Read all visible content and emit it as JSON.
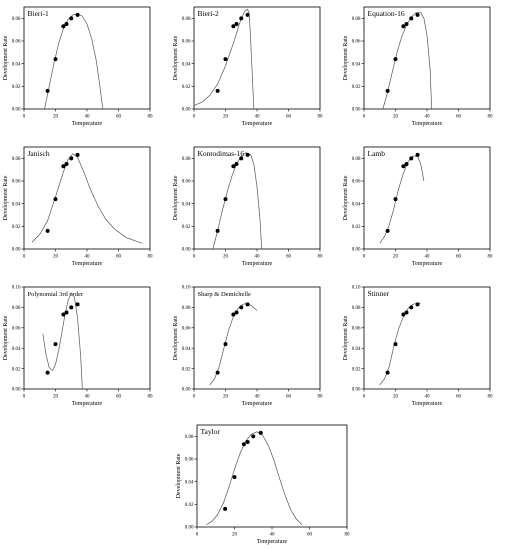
{
  "figure": {
    "x_axis_label": "Temperature",
    "y_axis_label": "Development Rate",
    "x_ticks": [
      0,
      20,
      40,
      60,
      80
    ],
    "y_ticks": [
      "0.00",
      "0.02",
      "0.04",
      "0.06",
      "0.08"
    ],
    "y_ticks_alt": [
      "0.00",
      "0.02",
      "0.04",
      "0.06",
      "0.08",
      "0.10"
    ]
  },
  "chart_data": [
    {
      "type": "scatter",
      "title": "Bieri-1",
      "xlabel": "Temperature",
      "ylabel": "Development Rate",
      "xlim": [
        0,
        80
      ],
      "ylim": [
        0,
        0.09
      ],
      "y_tick_set": "standard",
      "points": [
        [
          15,
          0.016
        ],
        [
          20,
          0.044
        ],
        [
          25,
          0.073
        ],
        [
          27,
          0.075
        ],
        [
          30,
          0.08
        ],
        [
          34,
          0.083
        ]
      ],
      "curve": [
        [
          13,
          0.0
        ],
        [
          16,
          0.02
        ],
        [
          19,
          0.04
        ],
        [
          22,
          0.058
        ],
        [
          25,
          0.071
        ],
        [
          28,
          0.079
        ],
        [
          31,
          0.083
        ],
        [
          34,
          0.084
        ],
        [
          37,
          0.082
        ],
        [
          40,
          0.075
        ],
        [
          43,
          0.062
        ],
        [
          46,
          0.042
        ],
        [
          48,
          0.022
        ],
        [
          50,
          0.0
        ]
      ]
    },
    {
      "type": "scatter",
      "title": "Bieri-2",
      "xlabel": "Temperature",
      "ylabel": "Development Rate",
      "xlim": [
        0,
        80
      ],
      "ylim": [
        0,
        0.09
      ],
      "y_tick_set": "standard",
      "points": [
        [
          15,
          0.016
        ],
        [
          20,
          0.044
        ],
        [
          25,
          0.073
        ],
        [
          27,
          0.075
        ],
        [
          30,
          0.08
        ],
        [
          34,
          0.083
        ]
      ],
      "curve": [
        [
          0,
          0.003
        ],
        [
          5,
          0.006
        ],
        [
          10,
          0.012
        ],
        [
          15,
          0.022
        ],
        [
          20,
          0.038
        ],
        [
          25,
          0.058
        ],
        [
          29,
          0.076
        ],
        [
          32,
          0.086
        ],
        [
          34,
          0.088
        ],
        [
          35,
          0.085
        ],
        [
          36,
          0.06
        ],
        [
          37,
          0.03
        ],
        [
          38,
          0.0
        ]
      ]
    },
    {
      "type": "scatter",
      "title": "Equation-16",
      "xlabel": "Temperature",
      "ylabel": "Development Rate",
      "xlim": [
        0,
        80
      ],
      "ylim": [
        0,
        0.09
      ],
      "y_tick_set": "standard",
      "points": [
        [
          15,
          0.016
        ],
        [
          20,
          0.044
        ],
        [
          25,
          0.073
        ],
        [
          27,
          0.075
        ],
        [
          30,
          0.08
        ],
        [
          34,
          0.083
        ]
      ],
      "curve": [
        [
          12,
          0.0
        ],
        [
          15,
          0.015
        ],
        [
          18,
          0.033
        ],
        [
          21,
          0.05
        ],
        [
          24,
          0.064
        ],
        [
          27,
          0.074
        ],
        [
          30,
          0.081
        ],
        [
          33,
          0.085
        ],
        [
          36,
          0.085
        ],
        [
          38,
          0.08
        ],
        [
          40,
          0.065
        ],
        [
          42,
          0.035
        ],
        [
          43,
          0.0
        ]
      ]
    },
    {
      "type": "scatter",
      "title": "Janisch",
      "xlabel": "Temperature",
      "ylabel": "Development Rate",
      "xlim": [
        0,
        80
      ],
      "ylim": [
        0,
        0.09
      ],
      "y_tick_set": "standard",
      "points": [
        [
          15,
          0.016
        ],
        [
          20,
          0.044
        ],
        [
          25,
          0.073
        ],
        [
          27,
          0.075
        ],
        [
          30,
          0.08
        ],
        [
          34,
          0.083
        ]
      ],
      "curve": [
        [
          5,
          0.006
        ],
        [
          10,
          0.013
        ],
        [
          15,
          0.025
        ],
        [
          20,
          0.046
        ],
        [
          25,
          0.068
        ],
        [
          28,
          0.079
        ],
        [
          31,
          0.084
        ],
        [
          34,
          0.081
        ],
        [
          38,
          0.068
        ],
        [
          42,
          0.053
        ],
        [
          47,
          0.038
        ],
        [
          52,
          0.026
        ],
        [
          58,
          0.017
        ],
        [
          65,
          0.01
        ],
        [
          75,
          0.005
        ]
      ]
    },
    {
      "type": "scatter",
      "title": "Kontodimas-16",
      "xlabel": "Temperature",
      "ylabel": "Development Rate",
      "xlim": [
        0,
        80
      ],
      "ylim": [
        0,
        0.09
      ],
      "y_tick_set": "standard",
      "points": [
        [
          15,
          0.016
        ],
        [
          20,
          0.044
        ],
        [
          25,
          0.073
        ],
        [
          27,
          0.075
        ],
        [
          30,
          0.08
        ],
        [
          34,
          0.083
        ]
      ],
      "curve": [
        [
          12,
          0.0
        ],
        [
          15,
          0.016
        ],
        [
          18,
          0.034
        ],
        [
          21,
          0.05
        ],
        [
          24,
          0.064
        ],
        [
          27,
          0.075
        ],
        [
          30,
          0.082
        ],
        [
          33,
          0.085
        ],
        [
          36,
          0.083
        ],
        [
          38,
          0.075
        ],
        [
          40,
          0.055
        ],
        [
          42,
          0.025
        ],
        [
          43,
          0.0
        ]
      ]
    },
    {
      "type": "scatter",
      "title": "Lamb",
      "xlabel": "Temperature",
      "ylabel": "Development Rate",
      "xlim": [
        0,
        80
      ],
      "ylim": [
        0,
        0.09
      ],
      "y_tick_set": "standard",
      "points": [
        [
          15,
          0.016
        ],
        [
          20,
          0.044
        ],
        [
          25,
          0.073
        ],
        [
          27,
          0.075
        ],
        [
          30,
          0.08
        ],
        [
          34,
          0.083
        ]
      ],
      "curve": [
        [
          10,
          0.005
        ],
        [
          13,
          0.011
        ],
        [
          16,
          0.021
        ],
        [
          19,
          0.036
        ],
        [
          22,
          0.053
        ],
        [
          25,
          0.067
        ],
        [
          28,
          0.077
        ],
        [
          31,
          0.082
        ],
        [
          34,
          0.082
        ],
        [
          36,
          0.075
        ],
        [
          38,
          0.06
        ]
      ]
    },
    {
      "type": "scatter",
      "title": "Polynomial 3rd order",
      "xlabel": "Temperature",
      "ylabel": "Development Rate",
      "xlim": [
        0,
        80
      ],
      "ylim": [
        0,
        0.1
      ],
      "y_tick_set": "alt",
      "points": [
        [
          15,
          0.016
        ],
        [
          20,
          0.044
        ],
        [
          25,
          0.073
        ],
        [
          27,
          0.075
        ],
        [
          30,
          0.08
        ],
        [
          34,
          0.083
        ]
      ],
      "curve": [
        [
          12,
          0.054
        ],
        [
          14,
          0.034
        ],
        [
          16,
          0.021
        ],
        [
          18,
          0.018
        ],
        [
          20,
          0.024
        ],
        [
          22,
          0.038
        ],
        [
          24,
          0.055
        ],
        [
          26,
          0.073
        ],
        [
          28,
          0.087
        ],
        [
          30,
          0.094
        ],
        [
          32,
          0.09
        ],
        [
          34,
          0.07
        ],
        [
          36,
          0.032
        ],
        [
          37,
          0.0
        ]
      ]
    },
    {
      "type": "scatter",
      "title": "Sharp & Demichelle",
      "xlabel": "Temperature",
      "ylabel": "Development Rate",
      "xlim": [
        0,
        80
      ],
      "ylim": [
        0,
        0.1
      ],
      "y_tick_set": "alt",
      "points": [
        [
          15,
          0.016
        ],
        [
          20,
          0.044
        ],
        [
          25,
          0.073
        ],
        [
          27,
          0.075
        ],
        [
          30,
          0.08
        ],
        [
          34,
          0.083
        ]
      ],
      "curve": [
        [
          10,
          0.004
        ],
        [
          13,
          0.01
        ],
        [
          16,
          0.022
        ],
        [
          19,
          0.04
        ],
        [
          22,
          0.058
        ],
        [
          25,
          0.071
        ],
        [
          28,
          0.079
        ],
        [
          31,
          0.083
        ],
        [
          34,
          0.084
        ],
        [
          37,
          0.081
        ],
        [
          40,
          0.077
        ]
      ]
    },
    {
      "type": "scatter",
      "title": "Stinner",
      "xlabel": "Temperature",
      "ylabel": "Development Rate",
      "xlim": [
        0,
        80
      ],
      "ylim": [
        0,
        0.1
      ],
      "y_tick_set": "alt",
      "points": [
        [
          15,
          0.016
        ],
        [
          20,
          0.044
        ],
        [
          25,
          0.073
        ],
        [
          27,
          0.075
        ],
        [
          30,
          0.08
        ],
        [
          34,
          0.083
        ]
      ],
      "curve": [
        [
          10,
          0.004
        ],
        [
          13,
          0.01
        ],
        [
          16,
          0.022
        ],
        [
          19,
          0.042
        ],
        [
          22,
          0.059
        ],
        [
          25,
          0.071
        ],
        [
          28,
          0.079
        ],
        [
          31,
          0.083
        ],
        [
          34,
          0.084
        ],
        [
          36,
          0.084
        ]
      ]
    },
    {
      "type": "scatter",
      "title": "Taylor",
      "xlabel": "Temperature",
      "ylabel": "Development Rate",
      "xlim": [
        0,
        80
      ],
      "ylim": [
        0,
        0.09
      ],
      "y_tick_set": "standard",
      "points": [
        [
          15,
          0.016
        ],
        [
          20,
          0.044
        ],
        [
          25,
          0.073
        ],
        [
          27,
          0.075
        ],
        [
          30,
          0.08
        ],
        [
          34,
          0.083
        ]
      ],
      "curve": [
        [
          5,
          0.002
        ],
        [
          8,
          0.005
        ],
        [
          11,
          0.011
        ],
        [
          14,
          0.021
        ],
        [
          17,
          0.035
        ],
        [
          20,
          0.051
        ],
        [
          23,
          0.065
        ],
        [
          26,
          0.076
        ],
        [
          29,
          0.082
        ],
        [
          32,
          0.084
        ],
        [
          35,
          0.081
        ],
        [
          38,
          0.072
        ],
        [
          41,
          0.059
        ],
        [
          44,
          0.043
        ],
        [
          47,
          0.028
        ],
        [
          50,
          0.015
        ],
        [
          53,
          0.007
        ],
        [
          56,
          0.002
        ]
      ]
    }
  ]
}
